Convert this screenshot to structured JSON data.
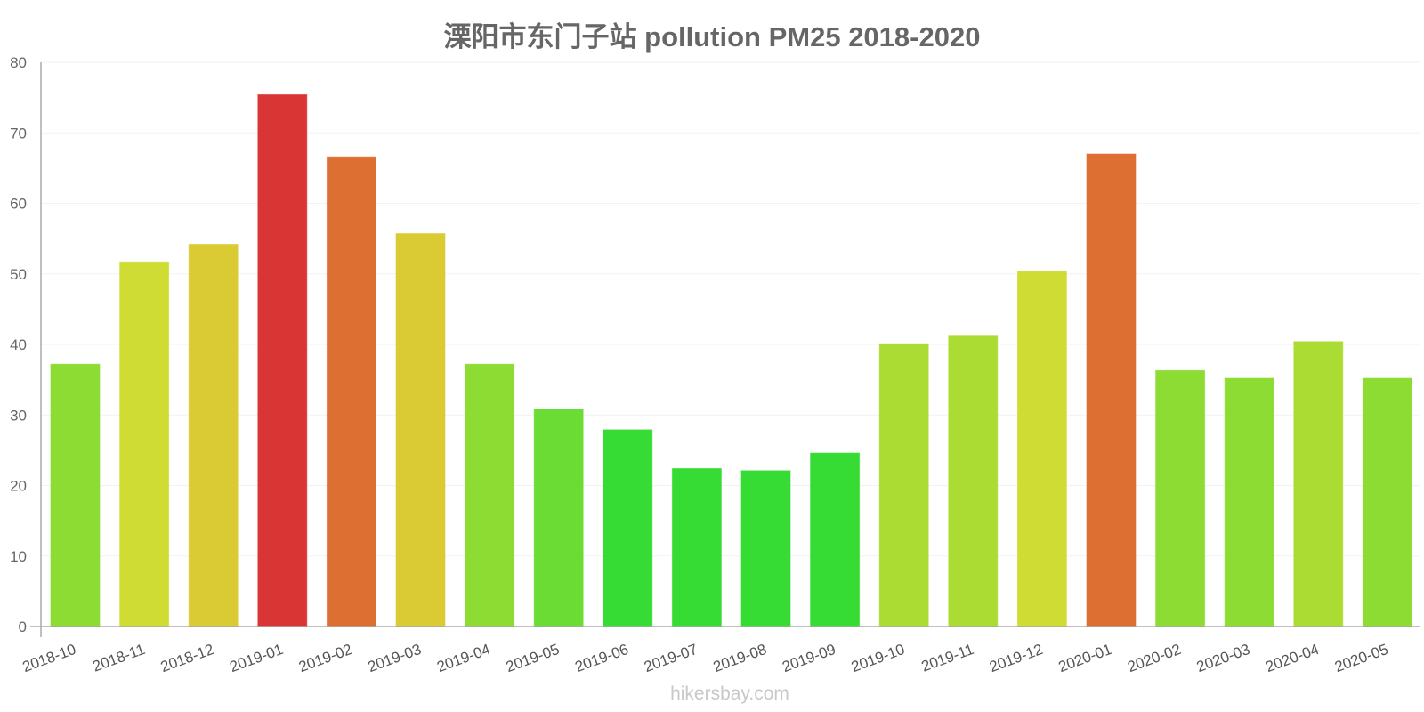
{
  "chart_data": {
    "type": "bar",
    "title": "溧阳市东门子站 pollution PM25 2018-2020",
    "xlabel": "",
    "ylabel": "",
    "ylim": [
      0,
      80
    ],
    "yticks": [
      0,
      10,
      20,
      30,
      40,
      50,
      60,
      70,
      80
    ],
    "grid": true,
    "legend": null,
    "categories": [
      "2018-10",
      "2018-11",
      "2018-12",
      "2019-01",
      "2019-02",
      "2019-03",
      "2019-04",
      "2019-05",
      "2019-06",
      "2019-07",
      "2019-08",
      "2019-09",
      "2019-10",
      "2019-11",
      "2019-12",
      "2020-01",
      "2020-02",
      "2020-03",
      "2020-04",
      "2020-05"
    ],
    "values": [
      37.2,
      51.7,
      54.2,
      75.4,
      66.6,
      55.7,
      37.2,
      30.8,
      27.9,
      22.4,
      22.1,
      24.6,
      40.1,
      41.3,
      50.4,
      67.0,
      36.3,
      35.2,
      40.4,
      35.2
    ],
    "colors": [
      "#8CDC34",
      "#CEDC34",
      "#DACA34",
      "#DA3535",
      "#DD6F33",
      "#DACA34",
      "#8CDC34",
      "#6BDC34",
      "#36DC34",
      "#36DC34",
      "#36DC34",
      "#36DC34",
      "#ABDC34",
      "#ABDC34",
      "#CEDC34",
      "#DD6F33",
      "#8CDC34",
      "#8CDC34",
      "#ABDC34",
      "#8CDC34"
    ]
  },
  "title": "溧阳市东门子站 pollution PM25 2018-2020",
  "watermark": "hikersbay.com",
  "style": {
    "axis_color": "#aaaaaa",
    "grid_color": "#f2f2f2",
    "text_color": "#666666"
  }
}
